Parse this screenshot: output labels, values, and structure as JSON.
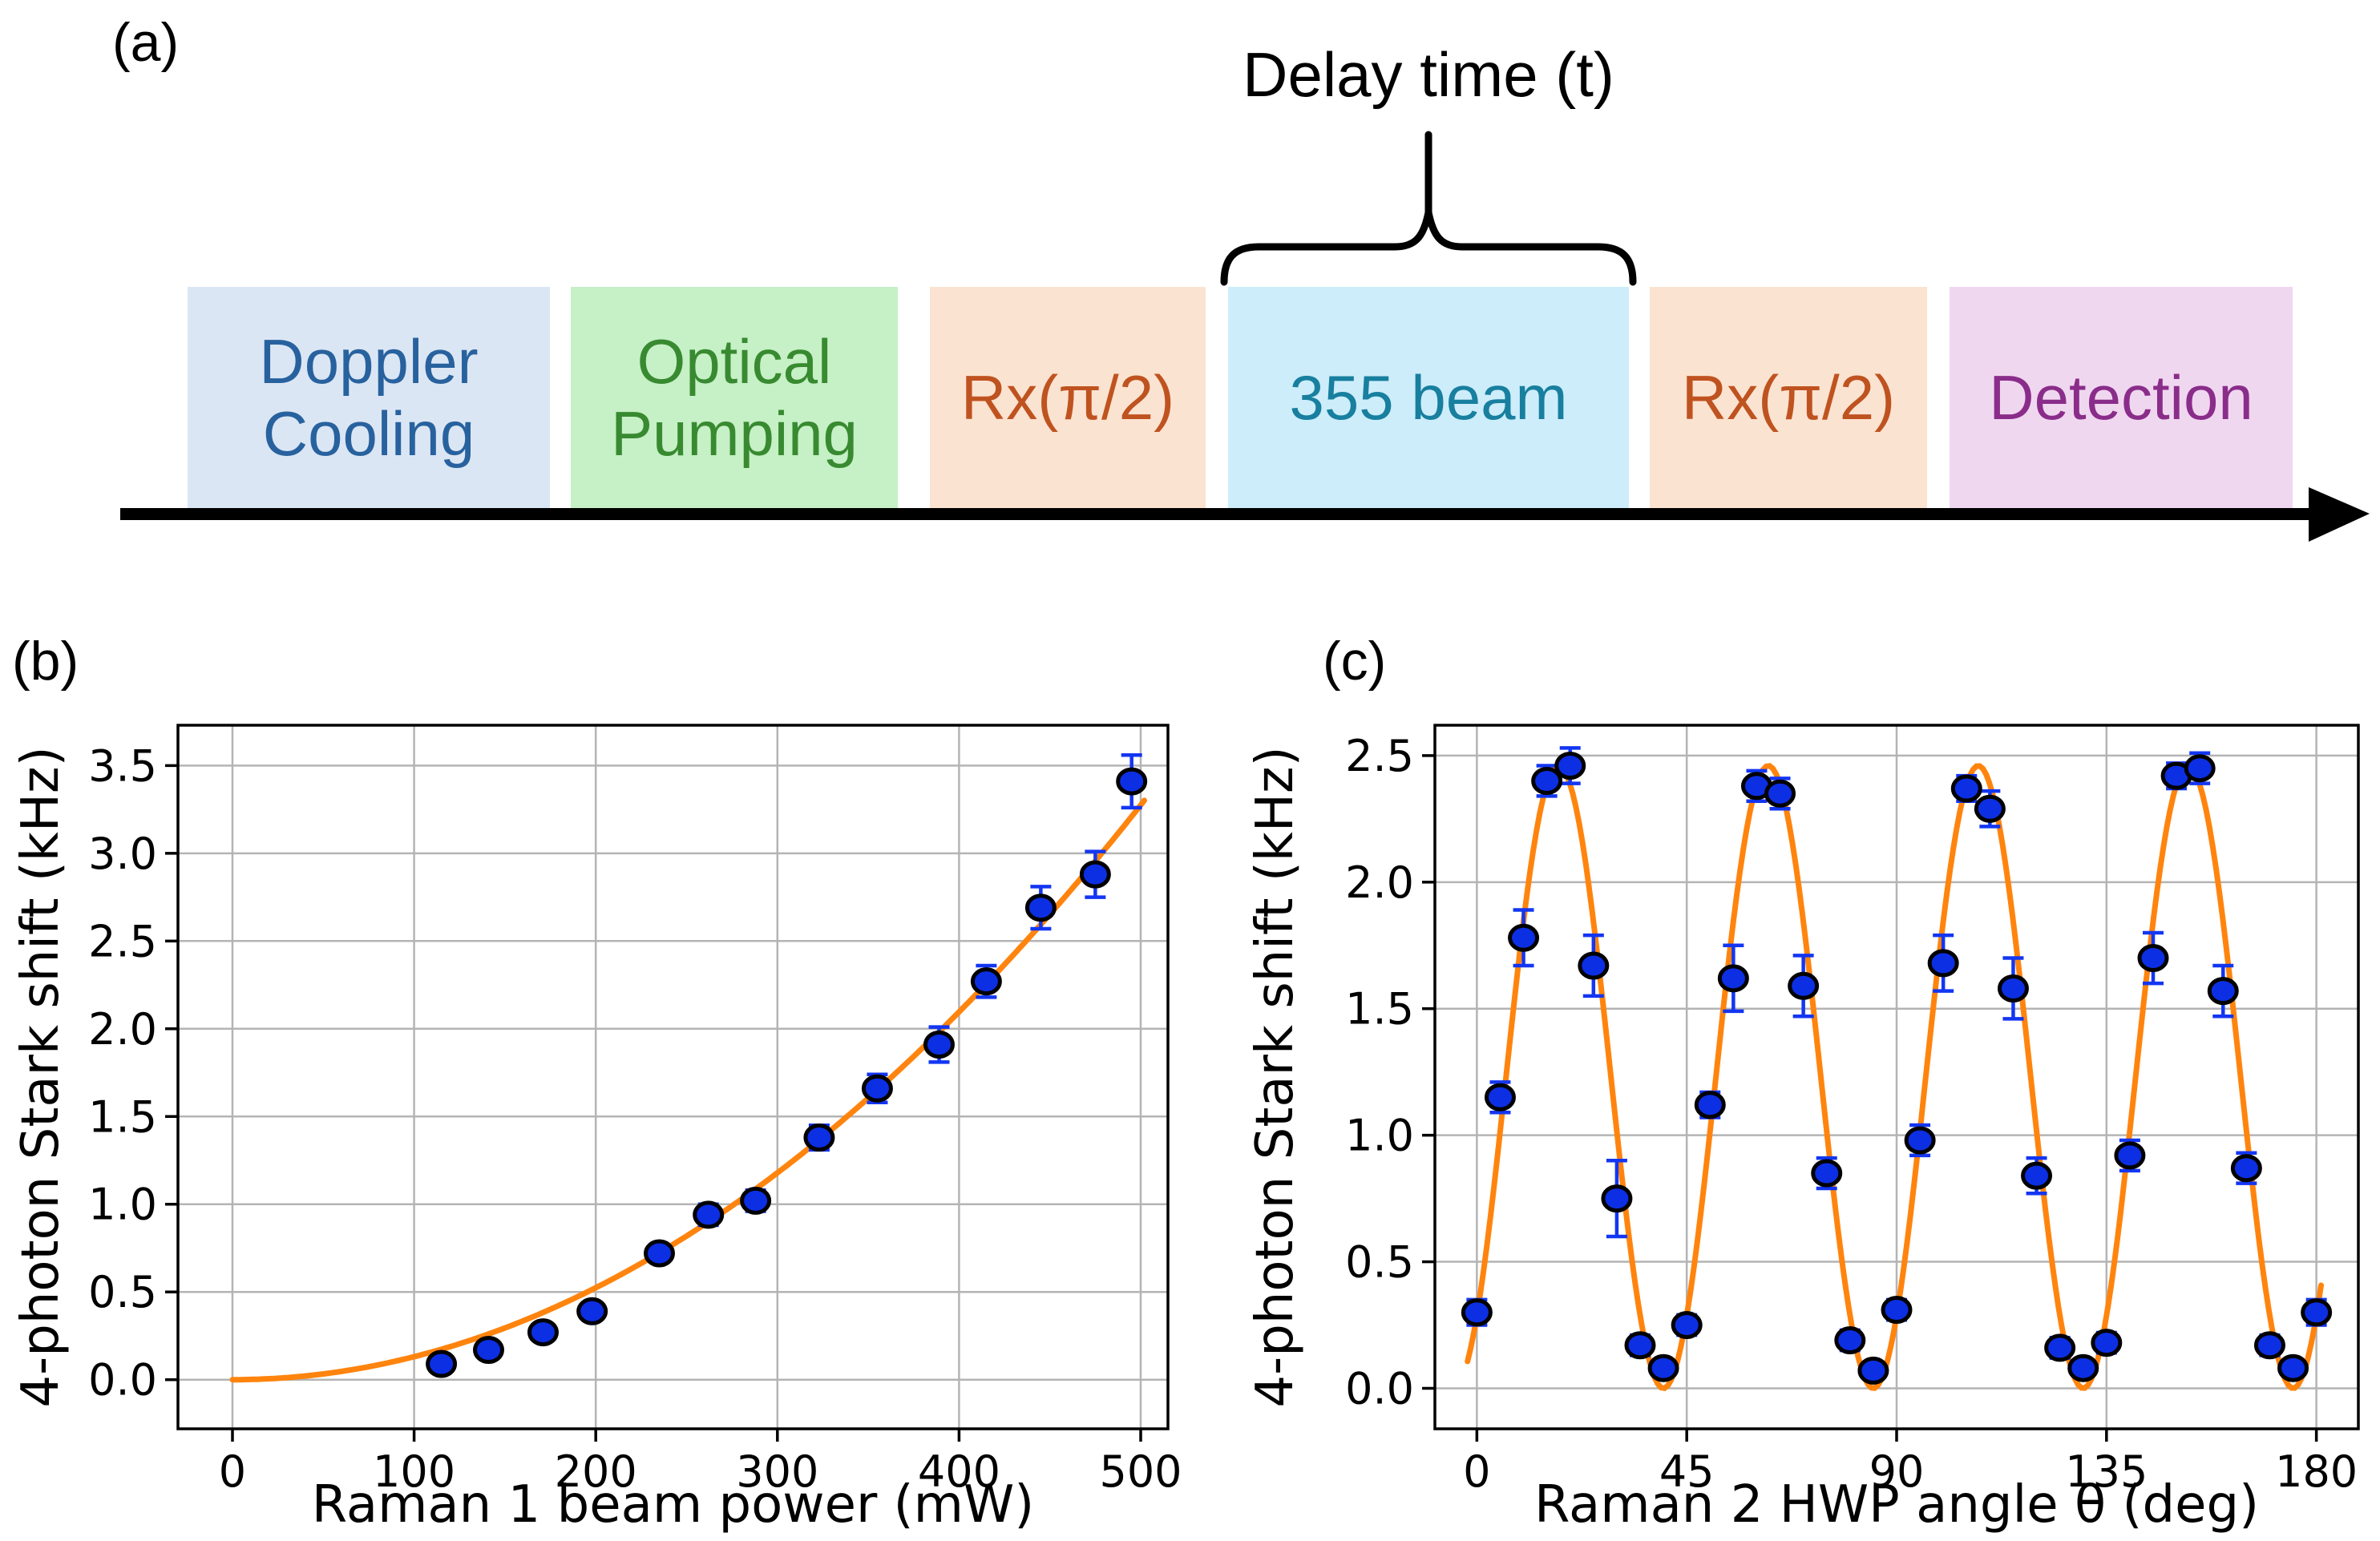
{
  "figure": {
    "panel_a_label": "(a)",
    "panel_b_label": "(b)",
    "panel_c_label": "(c)"
  },
  "sequence_diagram": {
    "delay_label": "Delay time (t)",
    "timeline_color": "#000000",
    "brace_color": "#000000",
    "blocks": [
      {
        "id": "doppler-cooling",
        "label": "Doppler\nCooling",
        "bg": "#dbe6f4",
        "color": "#28629e"
      },
      {
        "id": "optical-pumping",
        "label": "Optical\nPumping",
        "bg": "#c6f0c6",
        "color": "#388a30"
      },
      {
        "id": "rx-pulse-1",
        "label": "Rx(π/2)",
        "bg": "#fbe3d1",
        "color": "#bf5320"
      },
      {
        "id": "beam-355",
        "label": "355 beam",
        "bg": "#cdedfa",
        "color": "#187f9f"
      },
      {
        "id": "rx-pulse-2",
        "label": "Rx(π/2)",
        "bg": "#fbe3d1",
        "color": "#bf5320"
      },
      {
        "id": "detection",
        "label": "Detection",
        "bg": "#f0d7f0",
        "color": "#8a2d8a"
      }
    ]
  },
  "chart_data": [
    {
      "id": "b",
      "type": "scatter",
      "title": "",
      "xlabel": "Raman 1 beam power (mW)",
      "ylabel": "4-photon Stark shift (kHz)",
      "xlim": [
        -30,
        515
      ],
      "ylim": [
        -0.28,
        3.73
      ],
      "xticks": [
        0,
        100,
        200,
        300,
        400,
        500
      ],
      "yticks": [
        0.0,
        0.5,
        1.0,
        1.5,
        2.0,
        2.5,
        3.0,
        3.5
      ],
      "ytick_decimals": 1,
      "grid": true,
      "legend": "none",
      "style": {
        "marker_fill": "#0c2fe3",
        "marker_edge": "#000000",
        "errorbar": "#1336f2",
        "fit": "#ff840e",
        "grid": "#b4b4b4",
        "axis": "#000000"
      },
      "series": [
        {
          "name": "measured-stark-shift",
          "kind": "scatter",
          "x": [
            115,
            141,
            171,
            198,
            235,
            262,
            288,
            323,
            355,
            389,
            415,
            445,
            475,
            495
          ],
          "y": [
            0.09,
            0.17,
            0.27,
            0.39,
            0.72,
            0.94,
            1.02,
            1.38,
            1.66,
            1.91,
            2.27,
            2.69,
            2.88,
            3.41
          ],
          "yerr": [
            0.04,
            0.04,
            0.04,
            0.05,
            0.05,
            0.06,
            0.06,
            0.07,
            0.08,
            0.1,
            0.09,
            0.12,
            0.13,
            0.15
          ]
        },
        {
          "name": "quadratic-fit",
          "kind": "fit",
          "fit": {
            "kind": "quadratic",
            "a": 1.31e-05,
            "x_range": [
              0,
              502
            ]
          }
        }
      ]
    },
    {
      "id": "c",
      "type": "scatter",
      "title": "",
      "xlabel": "Raman 2 HWP angle θ (deg)",
      "ylabel": "4-photon Stark shift (kHz)",
      "xlim": [
        -9,
        189
      ],
      "ylim": [
        -0.16,
        2.62
      ],
      "xticks": [
        0,
        45,
        90,
        135,
        180
      ],
      "yticks": [
        0.0,
        0.5,
        1.0,
        1.5,
        2.0,
        2.5
      ],
      "ytick_decimals": 1,
      "grid": true,
      "legend": "none",
      "style": {
        "marker_fill": "#0c2fe3",
        "marker_edge": "#000000",
        "errorbar": "#1336f2",
        "fit": "#ff840e",
        "grid": "#b4b4b4",
        "axis": "#000000"
      },
      "series": [
        {
          "name": "measured-stark-shift",
          "kind": "scatter",
          "x": [
            0,
            5,
            10,
            15,
            20,
            25,
            30,
            35,
            40,
            45,
            50,
            55,
            60,
            65,
            70,
            75,
            80,
            85,
            90,
            95,
            100,
            105,
            110,
            115,
            120,
            125,
            130,
            135,
            140,
            145,
            150,
            155,
            160,
            165,
            170,
            175,
            180
          ],
          "y": [
            0.3,
            1.15,
            1.78,
            2.4,
            2.46,
            1.67,
            0.75,
            0.17,
            0.08,
            0.25,
            1.12,
            1.62,
            2.38,
            2.35,
            1.59,
            0.85,
            0.19,
            0.07,
            0.31,
            0.98,
            1.68,
            2.37,
            2.29,
            1.58,
            0.84,
            0.16,
            0.08,
            0.18,
            0.92,
            1.7,
            2.42,
            2.45,
            1.57,
            0.87,
            0.17,
            0.08,
            0.3
          ],
          "yerr": [
            0.05,
            0.06,
            0.11,
            0.06,
            0.07,
            0.12,
            0.15,
            0.04,
            0.03,
            0.04,
            0.05,
            0.13,
            0.06,
            0.06,
            0.12,
            0.06,
            0.04,
            0.03,
            0.04,
            0.06,
            0.11,
            0.05,
            0.07,
            0.12,
            0.07,
            0.04,
            0.03,
            0.04,
            0.06,
            0.1,
            0.05,
            0.06,
            0.1,
            0.06,
            0.04,
            0.03,
            0.05
          ],
          "note": "points every 5 deg"
        },
        {
          "name": "cos-squared-fit",
          "kind": "fit",
          "fit": {
            "kind": "cos_squared",
            "amplitude": 2.46,
            "period_deg": 45,
            "peak_deg": 17.5,
            "x_range": [
              -2,
              181
            ]
          }
        }
      ]
    }
  ]
}
